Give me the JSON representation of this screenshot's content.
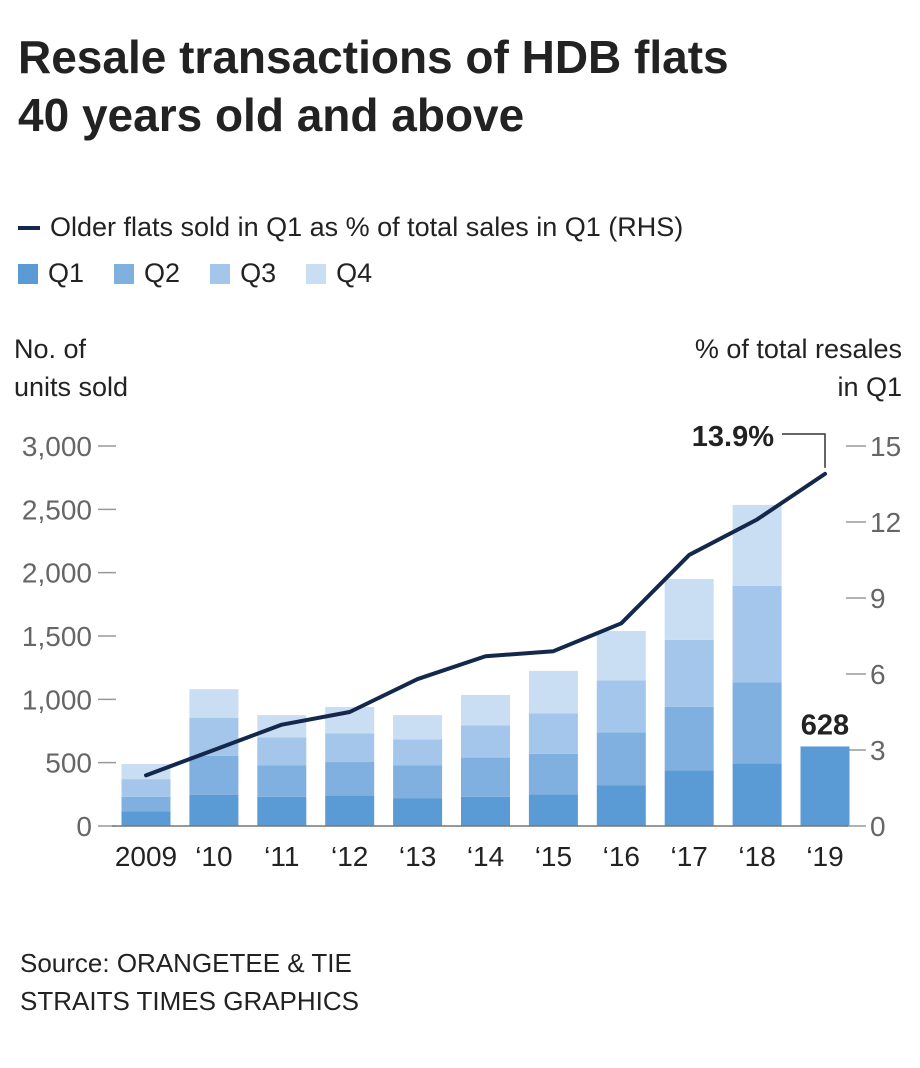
{
  "chart_data": {
    "type": "bar",
    "title": "Resale transactions of HDB flats 40 years old and above",
    "categories": [
      "2009",
      "‘10",
      "‘11",
      "‘12",
      "‘13",
      "‘14",
      "‘15",
      "‘16",
      "‘17",
      "‘18",
      "‘19"
    ],
    "series": [
      {
        "name": "Q1",
        "color": "#5b9bd5",
        "values": [
          115,
          245,
          230,
          240,
          220,
          230,
          250,
          320,
          440,
          495,
          628
        ]
      },
      {
        "name": "Q2",
        "color": "#7fb0e0",
        "values": [
          115,
          310,
          250,
          265,
          260,
          310,
          320,
          420,
          500,
          640,
          0
        ]
      },
      {
        "name": "Q3",
        "color": "#a3c6ea",
        "values": [
          140,
          300,
          220,
          225,
          205,
          255,
          320,
          410,
          530,
          760,
          0
        ]
      },
      {
        "name": "Q4",
        "color": "#c9ddf3",
        "values": [
          120,
          225,
          175,
          210,
          190,
          240,
          335,
          390,
          480,
          640,
          0
        ]
      }
    ],
    "line_series": {
      "name": "Older flats sold in Q1 as % of total sales in Q1 (RHS)",
      "color": "#14284b",
      "values": [
        2.0,
        3.0,
        4.0,
        4.5,
        5.8,
        6.7,
        6.9,
        8.0,
        10.7,
        12.1,
        13.9
      ]
    },
    "ylim": [
      0,
      3000
    ],
    "yticks": [
      0,
      500,
      1000,
      1500,
      2000,
      2500,
      3000
    ],
    "ytick_labels": [
      "0",
      "500",
      "1,000",
      "1,500",
      "2,000",
      "2,500",
      "3,000"
    ],
    "y2lim": [
      0,
      15
    ],
    "y2ticks": [
      0,
      3,
      6,
      9,
      12,
      15
    ],
    "y2tick_labels": [
      "0",
      "3",
      "6",
      "9",
      "12",
      "15"
    ],
    "annotations": {
      "line_end_label": "13.9%",
      "last_bar_label": "628"
    }
  },
  "legend": {
    "line_label": "Older flats sold in Q1 as % of total sales in Q1 (RHS)",
    "q1": "Q1",
    "q2": "Q2",
    "q3": "Q3",
    "q4": "Q4"
  },
  "axes": {
    "left_title_1": "No. of",
    "left_title_2": "units sold",
    "right_title_1": "% of total resales",
    "right_title_2": "in Q1"
  },
  "title": {
    "line1": "Resale transactions of HDB flats",
    "line2": "40 years old and above"
  },
  "footer": {
    "source": "Source: ORANGETEE & TIE",
    "credit": "STRAITS TIMES GRAPHICS"
  }
}
